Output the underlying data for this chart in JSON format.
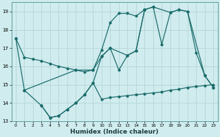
{
  "xlabel": "Humidex (Indice chaleur)",
  "bg_color": "#d0ecee",
  "grid_color": "#b8d8da",
  "line_color": "#1a6b6b",
  "xlim": [
    -0.5,
    23.5
  ],
  "ylim": [
    13,
    19.5
  ],
  "yticks": [
    13,
    14,
    15,
    16,
    17,
    18,
    19
  ],
  "xticks": [
    0,
    1,
    2,
    3,
    4,
    5,
    6,
    7,
    8,
    9,
    10,
    11,
    12,
    13,
    14,
    15,
    16,
    17,
    18,
    19,
    20,
    21,
    22,
    23
  ],
  "line1_x": [
    0,
    1,
    2,
    3,
    4,
    5,
    6,
    7,
    8,
    9,
    10,
    11,
    12,
    13,
    14,
    15,
    16,
    17,
    18,
    19,
    20,
    21,
    22,
    23
  ],
  "line1_y": [
    17.55,
    16.5,
    16.4,
    16.3,
    16.15,
    16.0,
    15.9,
    15.8,
    15.7,
    15.8,
    16.9,
    18.4,
    18.9,
    18.9,
    18.75,
    19.1,
    19.25,
    17.2,
    18.95,
    19.1,
    19.0,
    16.75,
    15.5,
    14.85
  ],
  "line2_x": [
    0,
    1,
    7,
    9,
    10,
    11,
    13,
    14,
    15,
    16,
    18,
    19,
    20,
    22,
    23
  ],
  "line2_y": [
    17.55,
    14.7,
    15.8,
    15.8,
    16.55,
    17.0,
    16.6,
    16.85,
    19.1,
    19.25,
    18.95,
    19.1,
    19.0,
    15.5,
    14.85
  ],
  "line3_x": [
    3,
    4,
    5,
    6,
    7,
    8,
    9,
    10,
    11,
    12,
    13,
    14,
    15,
    16,
    17,
    18,
    19,
    20,
    21,
    22,
    23
  ],
  "line3_y": [
    13.85,
    13.2,
    13.3,
    13.65,
    14.0,
    14.45,
    15.1,
    14.2,
    14.3,
    14.35,
    14.4,
    14.45,
    14.5,
    14.55,
    14.6,
    14.7,
    14.75,
    14.85,
    14.9,
    14.95,
    15.0
  ],
  "line4_x": [
    1,
    3,
    4,
    5,
    6,
    7,
    8,
    9,
    10,
    11,
    12,
    13,
    14,
    15
  ],
  "line4_y": [
    14.7,
    13.85,
    13.2,
    13.3,
    13.65,
    14.0,
    14.45,
    15.1,
    16.55,
    17.0,
    15.8,
    16.6,
    16.85,
    19.1
  ]
}
